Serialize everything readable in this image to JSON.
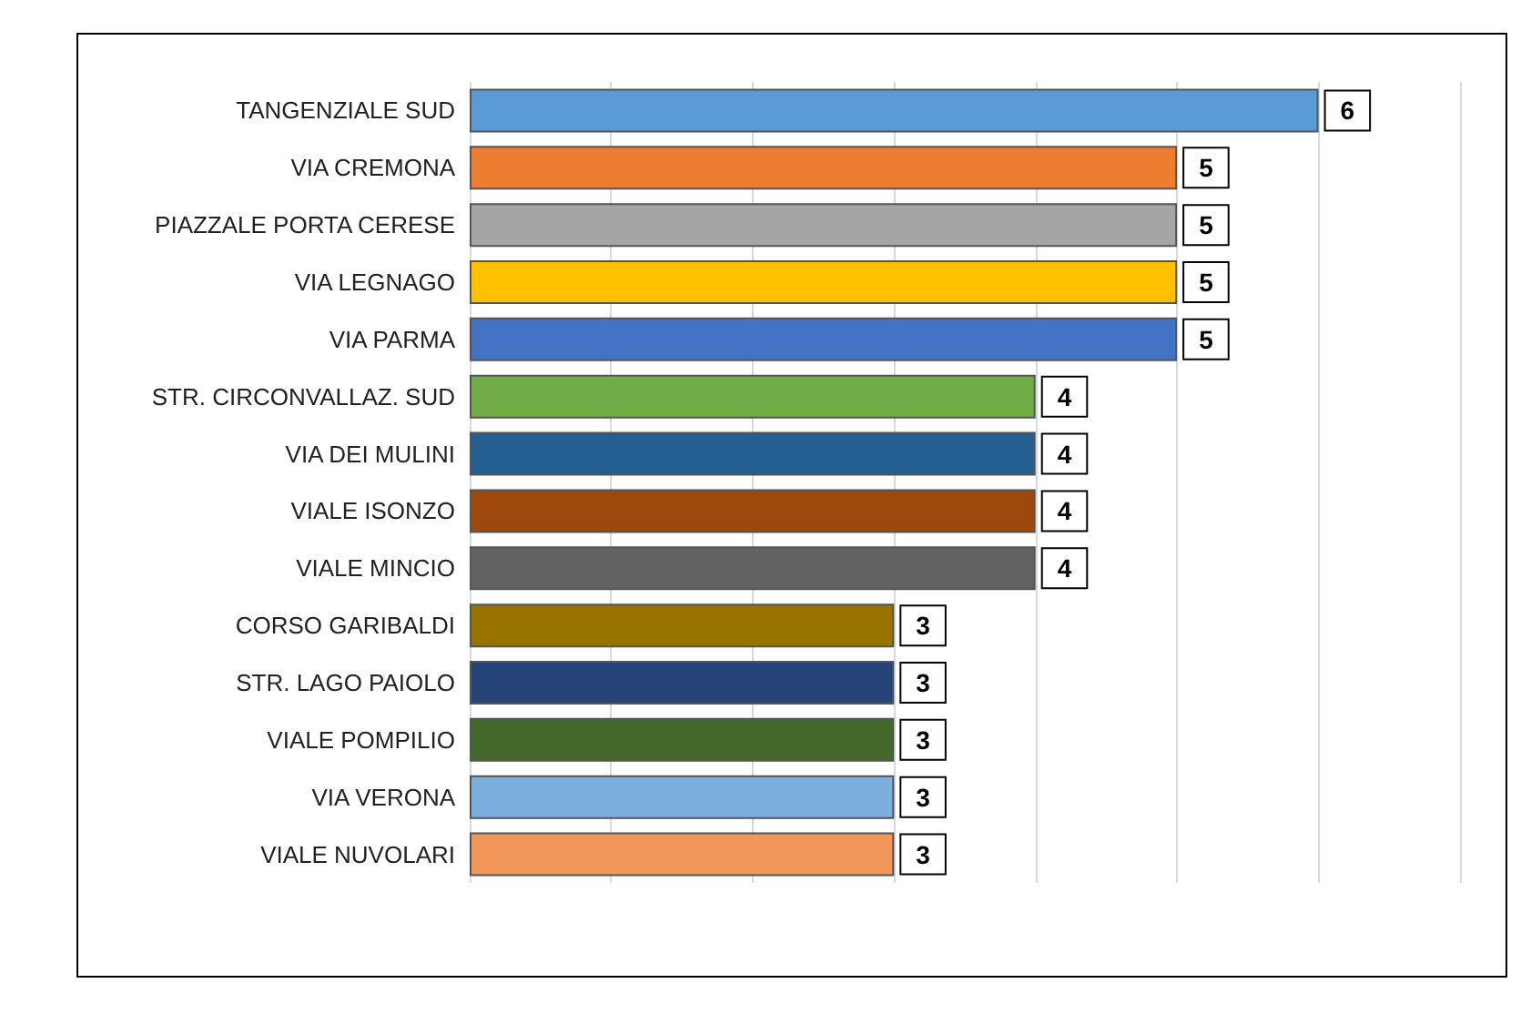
{
  "chart_data": {
    "type": "bar",
    "orientation": "horizontal",
    "categories": [
      "TANGENZIALE SUD",
      "VIA CREMONA",
      "PIAZZALE PORTA CERESE",
      "VIA LEGNAGO",
      "VIA PARMA",
      "STR. CIRCONVALLAZ. SUD",
      "VIA DEI MULINI",
      "VIALE ISONZO",
      "VIALE MINCIO",
      "CORSO GARIBALDI",
      "STR. LAGO PAIOLO",
      "VIALE POMPILIO",
      "VIA VERONA",
      "VIALE NUVOLARI"
    ],
    "values": [
      6,
      5,
      5,
      5,
      5,
      4,
      4,
      4,
      4,
      3,
      3,
      3,
      3,
      3
    ],
    "colors": [
      "#5b9bd5",
      "#ed7d31",
      "#a5a5a5",
      "#ffc000",
      "#4472c4",
      "#70ad47",
      "#255e91",
      "#9e480e",
      "#636363",
      "#997300",
      "#264478",
      "#43682b",
      "#7cafdd",
      "#f1975a"
    ],
    "xlim": [
      0,
      7
    ],
    "xticks": [
      {
        "value": 0,
        "label": null
      },
      {
        "value": 1,
        "label": null
      },
      {
        "value": 2,
        "label": null
      },
      {
        "value": 3,
        "label": null
      },
      {
        "value": 4,
        "label": null
      },
      {
        "value": 5,
        "label": null
      },
      {
        "value": 6,
        "label": null
      },
      {
        "value": 7,
        "label": null
      }
    ],
    "tick_labels": "y",
    "grid": "x",
    "data_labels": true
  }
}
